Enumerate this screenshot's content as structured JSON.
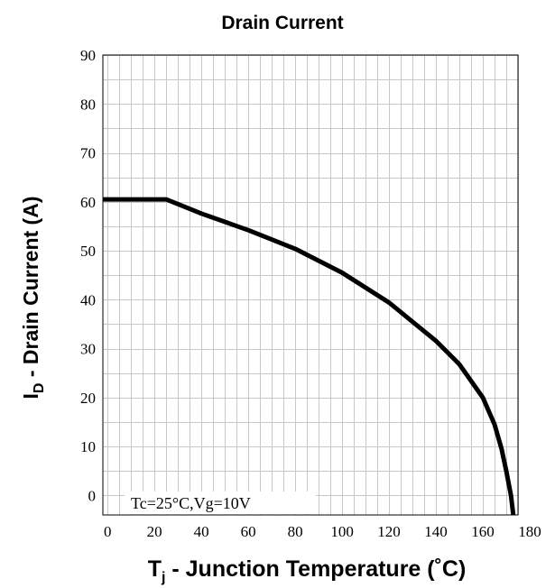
{
  "chart_data": {
    "type": "line",
    "title": "Drain Current",
    "xlabel": {
      "main": "T",
      "sub": "j",
      "rest": " - Junction Temperature (˚C)"
    },
    "ylabel": {
      "main": "I",
      "sub": "D",
      "rest": " - Drain Current (A)"
    },
    "annotation": "Tc=25°C,Vg=10V",
    "xlim": [
      -2,
      175
    ],
    "ylim": [
      -4,
      90
    ],
    "x_ticks": [
      0,
      20,
      40,
      60,
      80,
      100,
      120,
      140,
      160,
      180
    ],
    "y_ticks": [
      0,
      10,
      20,
      30,
      40,
      50,
      60,
      70,
      80,
      90
    ],
    "grid": true,
    "series": [
      {
        "color": "#000000",
        "x": [
          -2,
          25,
          40,
          60,
          80,
          100,
          120,
          140,
          150,
          160,
          165,
          168,
          170,
          172,
          173
        ],
        "y": [
          60.5,
          60.5,
          57.6,
          54.2,
          50.4,
          45.5,
          39.4,
          31.6,
          26.8,
          20.0,
          14.5,
          9.5,
          5.0,
          0,
          -4
        ]
      }
    ]
  }
}
